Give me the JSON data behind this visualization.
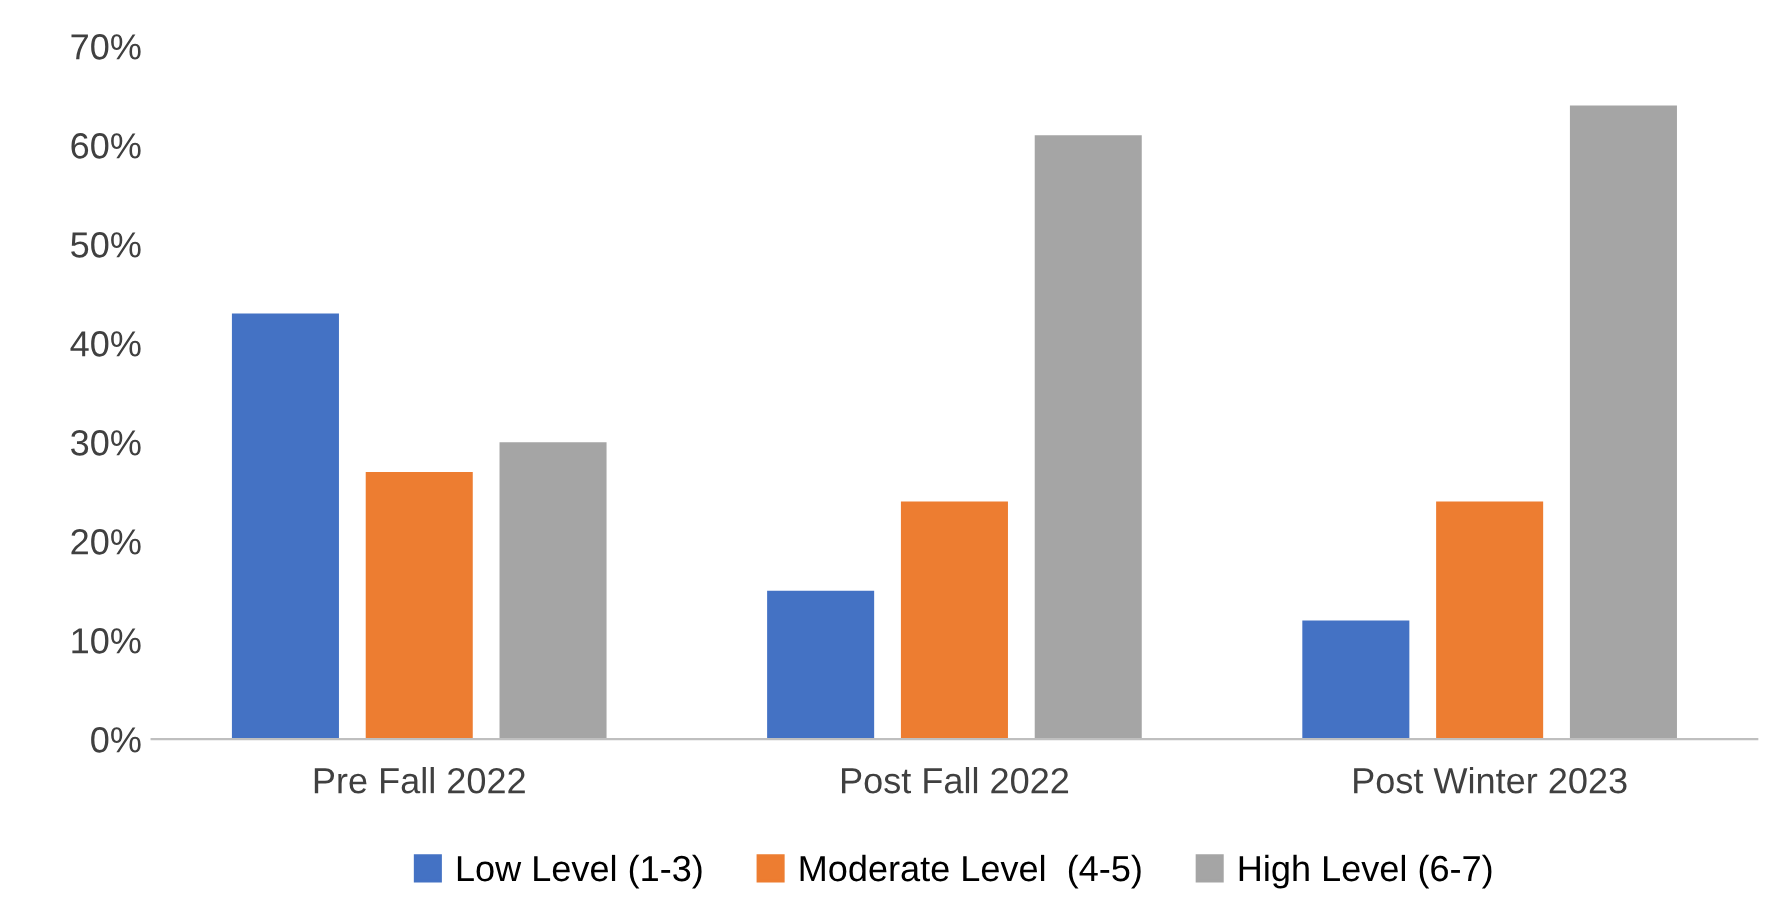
{
  "chart_data": {
    "type": "bar",
    "categories": [
      "Pre Fall 2022",
      "Post Fall 2022",
      "Post Winter 2023"
    ],
    "series": [
      {
        "name": "Low Level (1-3)",
        "color": "#4472c4",
        "values": [
          43,
          15,
          12
        ]
      },
      {
        "name": "Moderate Level  (4-5)",
        "color": "#ed7d31",
        "values": [
          27,
          24,
          24
        ]
      },
      {
        "name": "High Level (6-7)",
        "color": "#a5a5a5",
        "values": [
          30,
          61,
          64
        ]
      }
    ],
    "ylim": [
      0,
      70
    ],
    "yticks": [
      {
        "value": 0,
        "label": "0%"
      },
      {
        "value": 10,
        "label": "10%"
      },
      {
        "value": 20,
        "label": "20%"
      },
      {
        "value": 30,
        "label": "30%"
      },
      {
        "value": 40,
        "label": "40%"
      },
      {
        "value": 50,
        "label": "50%"
      },
      {
        "value": 60,
        "label": "60%"
      },
      {
        "value": 70,
        "label": "70%"
      }
    ],
    "grid": false,
    "legend": "bottom"
  }
}
